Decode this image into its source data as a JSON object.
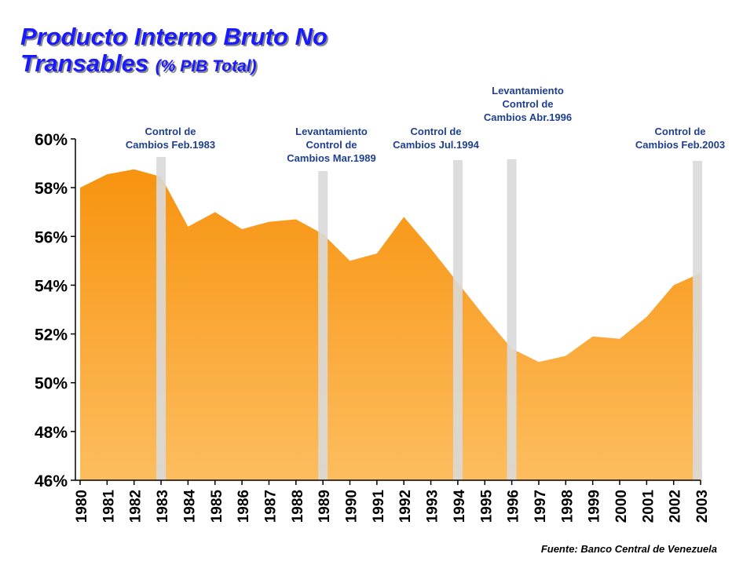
{
  "chart_data": {
    "type": "area",
    "title_line1": "Producto Interno Bruto No",
    "title_line2": "Transables",
    "title_suffix": "(% PIB Total)",
    "x": [
      "1980",
      "1981",
      "1982",
      "1983",
      "1984",
      "1985",
      "1986",
      "1987",
      "1988",
      "1989",
      "1990",
      "1991",
      "1992",
      "1993",
      "1994",
      "1995",
      "1996",
      "1997",
      "1998",
      "1999",
      "2000",
      "2001",
      "2002",
      "2003"
    ],
    "values": [
      58.0,
      58.55,
      58.75,
      58.45,
      56.4,
      57.0,
      56.3,
      56.6,
      56.7,
      56.1,
      55.0,
      55.3,
      56.8,
      55.5,
      54.1,
      52.7,
      51.4,
      50.85,
      51.1,
      51.9,
      51.8,
      52.7,
      54.0,
      54.5
    ],
    "ylim": [
      46,
      60
    ],
    "yticks": [
      "46%",
      "48%",
      "50%",
      "52%",
      "54%",
      "56%",
      "58%",
      "60%"
    ],
    "fill_colors": {
      "top": "#f7930f",
      "bottom": "#fdbd5f"
    },
    "events": [
      {
        "year": 1983,
        "lines": [
          "Control de",
          "Cambios Feb.1983"
        ]
      },
      {
        "year": 1989,
        "lines": [
          "Levantamiento",
          "Control de",
          "Cambios Mar.1989"
        ]
      },
      {
        "year": 1994,
        "lines": [
          "Control de",
          "Cambios Jul.1994"
        ]
      },
      {
        "year": 1996,
        "lines": [
          "Levantamiento",
          "Control de",
          "Cambios Abr.1996"
        ]
      },
      {
        "year": 2003,
        "lines": [
          "Control de",
          "Cambios Feb.2003"
        ]
      }
    ],
    "event_bar_color": "#d9d9d9",
    "annotation_color": "#1f3f8f",
    "source": "Fuente: Banco Central de Venezuela"
  }
}
